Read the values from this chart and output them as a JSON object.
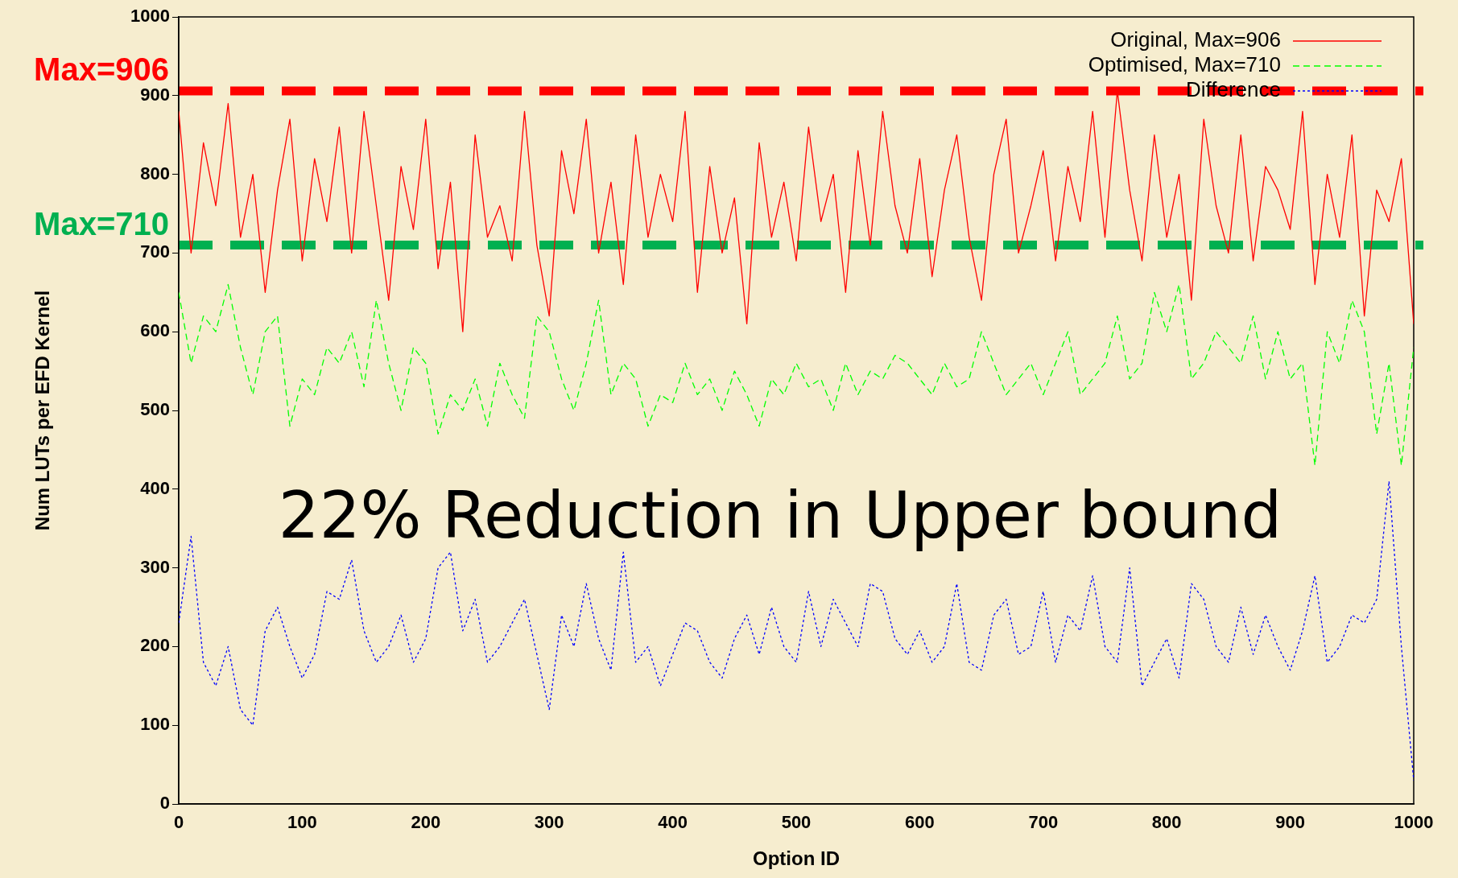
{
  "chart_data": {
    "type": "line",
    "xlabel": "Option ID",
    "ylabel": "Num LUTs per EFD Kernel",
    "x": [
      0,
      10,
      20,
      30,
      40,
      50,
      60,
      70,
      80,
      90,
      100,
      110,
      120,
      130,
      140,
      150,
      160,
      170,
      180,
      190,
      200,
      210,
      220,
      230,
      240,
      250,
      260,
      270,
      280,
      290,
      300,
      310,
      320,
      330,
      340,
      350,
      360,
      370,
      380,
      390,
      400,
      410,
      420,
      430,
      440,
      450,
      460,
      470,
      480,
      490,
      500,
      510,
      520,
      530,
      540,
      550,
      560,
      570,
      580,
      590,
      600,
      610,
      620,
      630,
      640,
      650,
      660,
      670,
      680,
      690,
      700,
      710,
      720,
      730,
      740,
      750,
      760,
      770,
      780,
      790,
      800,
      810,
      820,
      830,
      840,
      850,
      860,
      870,
      880,
      890,
      900,
      910,
      920,
      930,
      940,
      950,
      960,
      970,
      980,
      990,
      1000
    ],
    "series": [
      {
        "name": "Original, Max=906",
        "color": "#ff0000",
        "line_style": "solid",
        "values": [
          880,
          700,
          840,
          760,
          890,
          720,
          800,
          650,
          780,
          870,
          690,
          820,
          740,
          860,
          700,
          880,
          760,
          640,
          810,
          730,
          870,
          680,
          790,
          600,
          850,
          720,
          760,
          690,
          880,
          710,
          620,
          830,
          750,
          870,
          700,
          790,
          660,
          850,
          720,
          800,
          740,
          880,
          650,
          810,
          700,
          770,
          610,
          840,
          720,
          790,
          690,
          860,
          740,
          800,
          650,
          830,
          710,
          880,
          760,
          700,
          820,
          670,
          780,
          850,
          720,
          640,
          800,
          870,
          700,
          760,
          830,
          690,
          810,
          740,
          880,
          720,
          906,
          780,
          690,
          850,
          720,
          800,
          640,
          870,
          760,
          700,
          850,
          690,
          810,
          780,
          730,
          880,
          660,
          800,
          720,
          850,
          620,
          780,
          740,
          820,
          610
        ]
      },
      {
        "name": "Optimised, Max=710",
        "color": "#00ff00",
        "line_style": "dashed",
        "values": [
          650,
          560,
          620,
          600,
          660,
          580,
          520,
          600,
          620,
          480,
          540,
          520,
          580,
          560,
          600,
          530,
          640,
          560,
          500,
          580,
          560,
          470,
          520,
          500,
          540,
          480,
          560,
          520,
          490,
          620,
          600,
          540,
          500,
          560,
          640,
          520,
          560,
          540,
          480,
          520,
          510,
          560,
          520,
          540,
          500,
          550,
          520,
          480,
          540,
          520,
          560,
          530,
          540,
          500,
          560,
          520,
          550,
          540,
          570,
          560,
          540,
          520,
          560,
          530,
          540,
          600,
          560,
          520,
          540,
          560,
          520,
          560,
          600,
          520,
          540,
          560,
          620,
          540,
          560,
          650,
          600,
          660,
          540,
          560,
          600,
          580,
          560,
          620,
          540,
          600,
          540,
          560,
          430,
          600,
          560,
          640,
          600,
          470,
          560,
          430,
          580
        ]
      },
      {
        "name": "Difference",
        "color": "#0000ff",
        "line_style": "dotted",
        "values": [
          230,
          340,
          180,
          150,
          200,
          120,
          100,
          220,
          250,
          200,
          160,
          190,
          270,
          260,
          310,
          220,
          180,
          200,
          240,
          180,
          210,
          300,
          320,
          220,
          260,
          180,
          200,
          230,
          260,
          190,
          120,
          240,
          200,
          280,
          210,
          170,
          320,
          180,
          200,
          150,
          190,
          230,
          220,
          180,
          160,
          210,
          240,
          190,
          250,
          200,
          180,
          270,
          200,
          260,
          230,
          200,
          280,
          270,
          210,
          190,
          220,
          180,
          200,
          280,
          180,
          170,
          240,
          260,
          190,
          200,
          270,
          180,
          240,
          220,
          290,
          200,
          180,
          300,
          150,
          180,
          210,
          160,
          280,
          260,
          200,
          180,
          250,
          190,
          240,
          200,
          170,
          220,
          290,
          180,
          200,
          240,
          230,
          260,
          410,
          200,
          30
        ]
      }
    ],
    "xlim": [
      0,
      1000
    ],
    "xticks": [
      0,
      100,
      200,
      300,
      400,
      500,
      600,
      700,
      800,
      900,
      1000
    ],
    "ylim": [
      0,
      1000
    ],
    "yticks": [
      0,
      100,
      200,
      300,
      400,
      500,
      600,
      700,
      800,
      900,
      1000
    ],
    "ref_lines": [
      {
        "axis": "y",
        "value": 906,
        "label": "Max=906",
        "color": "#ff0000",
        "line_style": "dashed"
      },
      {
        "axis": "y",
        "value": 710,
        "label": "Max=710",
        "color": "#00b050",
        "line_style": "dashed"
      }
    ],
    "annotations": [
      "22% Reduction in Upper bound"
    ],
    "grid": false,
    "legend": "top right",
    "marker": "none"
  }
}
